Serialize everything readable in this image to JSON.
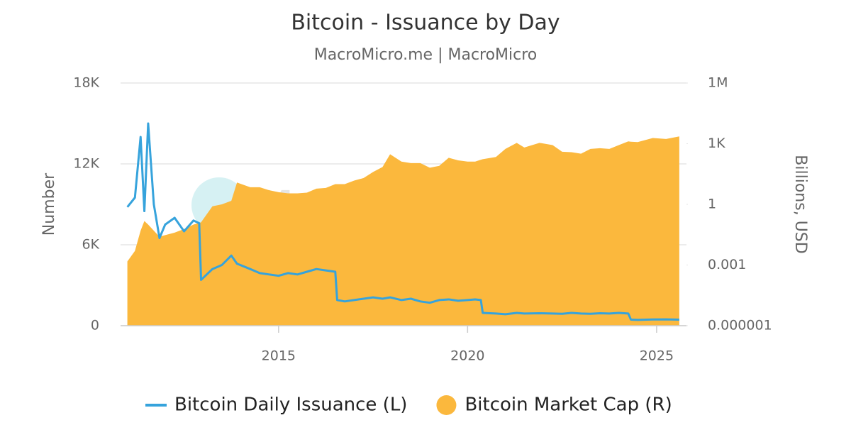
{
  "chart_data": {
    "type": "combo",
    "title": "Bitcoin - Issuance by Day",
    "subtitle": "MacroMicro.me | MacroMicro",
    "watermark": "MacroMicro",
    "ylabel": "Number",
    "y2label": "Billions, USD",
    "xlim": [
      2010.82,
      2025.79
    ],
    "xticks": [
      2015,
      2020,
      2025
    ],
    "ylim": [
      0,
      18000
    ],
    "yticks": [
      0,
      {
        "value": 6000,
        "label": "6K"
      },
      {
        "value": 12000,
        "label": "12K"
      },
      {
        "value": 18000,
        "label": "18K"
      }
    ],
    "y2lim": [
      1e-06,
      1000000
    ],
    "y2ticks": [
      {
        "value": 1e-06,
        "label": "0.000001"
      },
      0.001,
      1,
      {
        "value": 1000,
        "label": "1K"
      },
      {
        "value": 1000000,
        "label": "1M"
      }
    ],
    "y2_log": true,
    "grid": true,
    "legend": "bottom",
    "x": [
      2011.0,
      2011.2,
      2011.35,
      2011.45,
      2011.55,
      2011.7,
      2011.85,
      2012.0,
      2012.25,
      2012.5,
      2012.75,
      2012.9,
      2012.95,
      2013.25,
      2013.5,
      2013.75,
      2013.9,
      2014.25,
      2014.5,
      2014.75,
      2015.0,
      2015.25,
      2015.5,
      2015.75,
      2016.0,
      2016.25,
      2016.5,
      2016.55,
      2016.75,
      2017.0,
      2017.25,
      2017.5,
      2017.75,
      2017.95,
      2018.25,
      2018.5,
      2018.75,
      2019.0,
      2019.25,
      2019.5,
      2019.75,
      2020.0,
      2020.2,
      2020.35,
      2020.4,
      2020.75,
      2021.0,
      2021.3,
      2021.5,
      2021.9,
      2022.25,
      2022.5,
      2022.75,
      2023.0,
      2023.25,
      2023.5,
      2023.75,
      2024.0,
      2024.25,
      2024.32,
      2024.5,
      2024.9,
      2025.25,
      2025.6
    ],
    "series": [
      {
        "name": "Bitcoin Market Cap (R)",
        "type": "area",
        "axis": "y2",
        "color": "#fbb83d",
        "values": [
          0.0015,
          0.005,
          0.05,
          0.15,
          0.1,
          0.05,
          0.025,
          0.03,
          0.04,
          0.06,
          0.1,
          0.12,
          0.13,
          0.8,
          1.0,
          1.5,
          12,
          7,
          7,
          5,
          4,
          3.5,
          3.5,
          3.8,
          6,
          6.5,
          10,
          10,
          10,
          15,
          20,
          40,
          70,
          300,
          130,
          110,
          110,
          65,
          80,
          200,
          150,
          130,
          130,
          160,
          170,
          220,
          550,
          1100,
          650,
          1100,
          850,
          400,
          380,
          320,
          550,
          600,
          550,
          850,
          1300,
          1250,
          1200,
          1900,
          1700,
          2300
        ]
      },
      {
        "name": "Bitcoin Daily Issuance (L)",
        "type": "line",
        "axis": "y",
        "color": "#36a3dc",
        "values": [
          8800,
          9500,
          14000,
          8500,
          15000,
          9000,
          6500,
          7500,
          8000,
          7000,
          7800,
          7600,
          3400,
          4200,
          4500,
          5200,
          4600,
          4200,
          3900,
          3800,
          3700,
          3900,
          3800,
          4000,
          4200,
          4100,
          4000,
          1900,
          1800,
          1900,
          2000,
          2100,
          2000,
          2100,
          1900,
          2000,
          1800,
          1700,
          1900,
          1950,
          1850,
          1900,
          1950,
          1900,
          950,
          900,
          850,
          950,
          900,
          920,
          900,
          880,
          950,
          900,
          880,
          920,
          900,
          950,
          900,
          450,
          430,
          460,
          470,
          450
        ]
      }
    ]
  }
}
